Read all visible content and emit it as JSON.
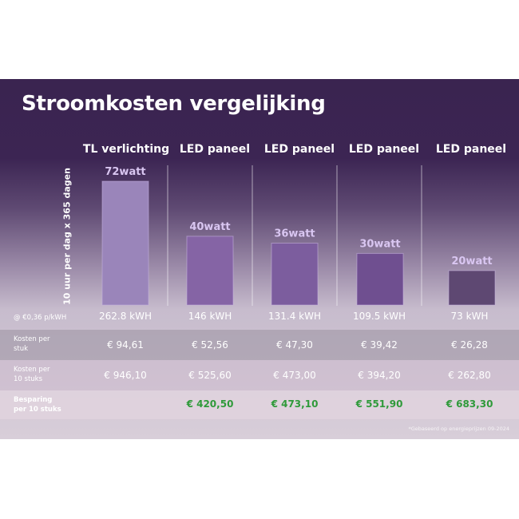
{
  "title": "Stroomkosten vergelijking",
  "chart_data": {
    "type": "bar",
    "categories": [
      "TL verlichting",
      "LED paneel",
      "LED paneel",
      "LED paneel",
      "LED paneel"
    ],
    "values": [
      72,
      40,
      36,
      30,
      20
    ],
    "value_labels": [
      "72watt",
      "40watt",
      "36watt",
      "30watt",
      "20watt"
    ],
    "ylabel": "10 uur per dag x 365 dagen",
    "ylim": [
      0,
      72
    ],
    "grid": false,
    "bar_colors": [
      "#9a85ba",
      "#8564a5",
      "#7c5d9e",
      "#6f4f90",
      "#5e4872"
    ],
    "label_color": "#d9c6f1"
  },
  "rows": {
    "kwh": {
      "label": "@ €0,36 p/kWH",
      "values": [
        "262.8 kWH",
        "146 kWH",
        "131.4 kWH",
        "109.5 kWH",
        "73 kWH"
      ]
    },
    "per_piece": {
      "label": "Kosten per\nstuk",
      "values": [
        "€ 94,61",
        "€ 52,56",
        "€ 47,30",
        "€ 39,42",
        "€ 26,28"
      ]
    },
    "per_ten": {
      "label": "Kosten per\n10 stuks",
      "values": [
        "€ 946,10",
        "€ 525,60",
        "€ 473,00",
        "€ 394,20",
        "€ 262,80"
      ]
    },
    "savings": {
      "label": "Besparing\nper 10 stuks",
      "values": [
        "",
        "€ 420,50",
        "€ 473,10",
        "€ 551,90",
        "€ 683,30"
      ]
    }
  },
  "footnote": "*Gebaseerd op energieprijzen 09-2024",
  "colors": {
    "savings": "#2f9a3a",
    "title": "#ffffff"
  }
}
